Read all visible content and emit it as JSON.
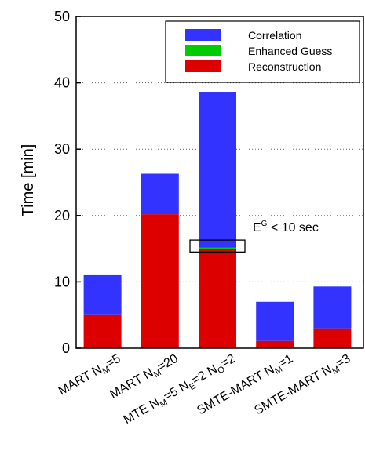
{
  "chart_data": {
    "type": "bar",
    "stacked": true,
    "ylabel": "Time [min]",
    "ylim": [
      0,
      50
    ],
    "yticks": [
      0,
      10,
      20,
      30,
      40,
      50
    ],
    "grid": "horizontal-dotted",
    "legend_position": "top-right",
    "categories": [
      {
        "label": "MART N_M=5",
        "parts": [
          [
            "MART N",
            ""
          ],
          [
            "M",
            "sub"
          ],
          [
            "=5",
            ""
          ]
        ]
      },
      {
        "label": "MART N_M=20",
        "parts": [
          [
            "MART N",
            ""
          ],
          [
            "M",
            "sub"
          ],
          [
            "=20",
            ""
          ]
        ]
      },
      {
        "label": "MTE N_M=5 N_E=2 N_O=2",
        "parts": [
          [
            "MTE N",
            ""
          ],
          [
            "M",
            "sub"
          ],
          [
            "=5 N",
            ""
          ],
          [
            "E",
            "sub"
          ],
          [
            "=2 N",
            ""
          ],
          [
            "O",
            "sub"
          ],
          [
            "=2",
            ""
          ]
        ]
      },
      {
        "label": "SMTE-MART N_M=1",
        "parts": [
          [
            "SMTE-MART N",
            ""
          ],
          [
            "M",
            "sub"
          ],
          [
            "=1",
            ""
          ]
        ]
      },
      {
        "label": "SMTE-MART N_M=3",
        "parts": [
          [
            "SMTE-MART N",
            ""
          ],
          [
            "M",
            "sub"
          ],
          [
            "=3",
            ""
          ]
        ]
      }
    ],
    "series": [
      {
        "name": "Reconstruction",
        "color": "#dd0000",
        "values": [
          5.0,
          20.2,
          15.0,
          1.1,
          3.0
        ]
      },
      {
        "name": "Enhanced Guess",
        "color": "#00cc00",
        "values": [
          0,
          0,
          0.15,
          0,
          0
        ]
      },
      {
        "name": "Correlation",
        "color": "#3333ff",
        "values": [
          6.0,
          6.1,
          23.5,
          5.9,
          6.3
        ]
      }
    ],
    "legend_order": [
      "Correlation",
      "Enhanced Guess",
      "Reconstruction"
    ],
    "annotation": {
      "text_main": "E",
      "text_sup": "G",
      "text_rest": " < 10 sec",
      "category_index": 2,
      "y_range": [
        14.5,
        16.3
      ]
    }
  }
}
